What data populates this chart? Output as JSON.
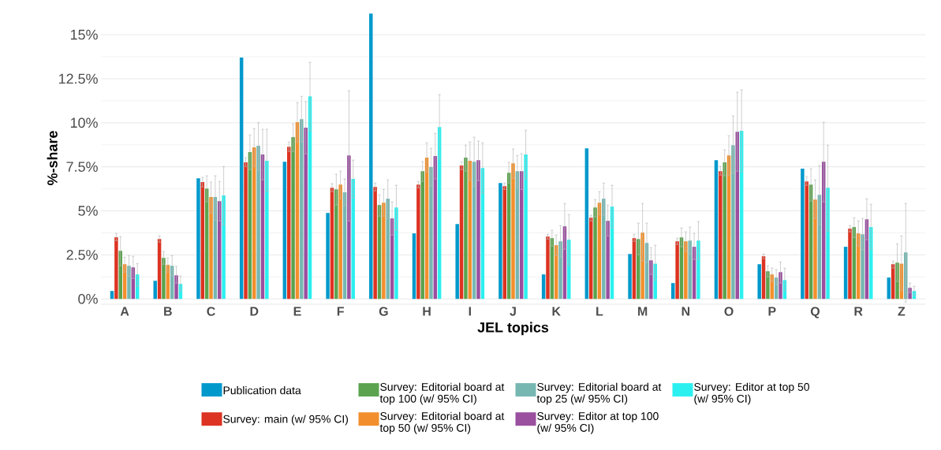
{
  "chart_data": {
    "type": "bar",
    "xlabel": "JEL topics",
    "ylabel": "%-share",
    "categories": [
      "A",
      "B",
      "C",
      "D",
      "E",
      "F",
      "G",
      "H",
      "I",
      "J",
      "K",
      "L",
      "M",
      "N",
      "O",
      "P",
      "Q",
      "R",
      "Z"
    ],
    "ylim": [
      -0.3,
      16.3
    ],
    "yticks": [
      {
        "value": 0,
        "label": "0%"
      },
      {
        "value": 2.5,
        "label": "2.5%"
      },
      {
        "value": 5,
        "label": "5%"
      },
      {
        "value": 7.5,
        "label": "7.5%"
      },
      {
        "value": 10,
        "label": "10%"
      },
      {
        "value": 12.5,
        "label": "12.5%"
      },
      {
        "value": 15,
        "label": "15%"
      }
    ],
    "grid": "y",
    "legend": "bottom",
    "series": [
      {
        "name": "Publication data",
        "color": "#0099cc",
        "values": [
          0.45,
          1.03,
          6.85,
          13.7,
          7.79,
          4.88,
          16.2,
          3.72,
          4.25,
          6.58,
          1.39,
          8.55,
          2.55,
          0.9,
          7.88,
          1.97,
          7.39,
          2.96,
          1.21
        ]
      },
      {
        "name": "Survey: main (w/ 95% CI)",
        "color": "#dd3322",
        "values": [
          3.5,
          3.4,
          6.63,
          7.75,
          8.64,
          6.31,
          6.36,
          6.49,
          7.57,
          6.4,
          3.54,
          4.61,
          3.45,
          3.27,
          7.25,
          2.42,
          6.67,
          3.99,
          1.97
        ],
        "errors": [
          [
            3.31,
            3.72
          ],
          [
            3.22,
            3.58
          ],
          [
            6.36,
            6.9
          ],
          [
            7.52,
            8.02
          ],
          [
            8.37,
            8.91
          ],
          [
            6.09,
            6.54
          ],
          [
            6.13,
            6.58
          ],
          [
            6.31,
            6.67
          ],
          [
            7.34,
            7.79
          ],
          [
            6.22,
            6.58
          ],
          [
            3.4,
            3.67
          ],
          [
            4.43,
            4.75
          ],
          [
            3.27,
            3.67
          ],
          [
            3.09,
            3.45
          ],
          [
            7.03,
            7.52
          ],
          [
            2.28,
            2.55
          ],
          [
            6.45,
            6.94
          ],
          [
            3.81,
            4.16
          ],
          [
            1.75,
            2.15
          ]
        ]
      },
      {
        "name": "Survey: Editorial board at top 100 (w/ 95% CI)",
        "color": "#5ba34e",
        "values": [
          2.73,
          2.33,
          6.27,
          8.33,
          9.18,
          6.22,
          5.33,
          7.25,
          8.02,
          7.16,
          3.45,
          5.19,
          3.4,
          3.49,
          7.75,
          1.57,
          6.49,
          4.08,
          2.06
        ],
        "errors": [
          [
            1.88,
            3.54
          ],
          [
            1.97,
            2.69
          ],
          [
            5.51,
            6.99
          ],
          [
            7.34,
            9.31
          ],
          [
            8.37,
            9.94
          ],
          [
            5.33,
            7.08
          ],
          [
            4.7,
            5.91
          ],
          [
            6.67,
            7.79
          ],
          [
            7.25,
            8.73
          ],
          [
            6.58,
            7.75
          ],
          [
            3.0,
            3.9
          ],
          [
            4.66,
            5.64
          ],
          [
            2.51,
            4.3
          ],
          [
            2.96,
            4.03
          ],
          [
            6.99,
            8.46
          ],
          [
            1.25,
            1.88
          ],
          [
            5.55,
            7.39
          ],
          [
            3.49,
            4.61
          ],
          [
            0.99,
            3.13
          ]
        ]
      },
      {
        "name": "Survey: Editorial board at top 50 (w/ 95% CI)",
        "color": "#f28f2c",
        "values": [
          1.97,
          1.93,
          5.78,
          8.6,
          10.03,
          6.49,
          5.46,
          8.02,
          7.84,
          7.7,
          3.05,
          5.46,
          3.76,
          3.27,
          8.15,
          1.39,
          5.64,
          3.72,
          2.0
        ],
        "errors": [
          [
            1.52,
            2.37
          ],
          [
            1.52,
            2.33
          ],
          [
            4.88,
            6.63
          ],
          [
            7.52,
            9.67
          ],
          [
            8.91,
            11.15
          ],
          [
            5.69,
            7.25
          ],
          [
            4.7,
            6.22
          ],
          [
            7.21,
            8.87
          ],
          [
            6.72,
            8.91
          ],
          [
            6.85,
            8.51
          ],
          [
            2.46,
            3.63
          ],
          [
            4.79,
            6.09
          ],
          [
            2.15,
            5.42
          ],
          [
            2.69,
            3.81
          ],
          [
            6.99,
            9.27
          ],
          [
            0.99,
            1.75
          ],
          [
            4.57,
            6.76
          ],
          [
            3.0,
            4.43
          ],
          [
            0.49,
            3.58
          ]
        ]
      },
      {
        "name": "Survey: Editorial board at top 25 (w/ 95% CI)",
        "color": "#76b7b2",
        "values": [
          1.88,
          1.88,
          5.78,
          8.69,
          10.2,
          6.05,
          5.69,
          7.48,
          7.79,
          7.25,
          3.27,
          5.69,
          3.18,
          3.31,
          8.73,
          1.21,
          5.91,
          3.67,
          2.64
        ],
        "errors": [
          [
            1.3,
            2.46
          ],
          [
            1.3,
            2.46
          ],
          [
            4.48,
            6.99
          ],
          [
            7.3,
            10.0
          ],
          [
            8.91,
            11.5
          ],
          [
            5.28,
            6.81
          ],
          [
            4.57,
            6.76
          ],
          [
            6.4,
            8.55
          ],
          [
            6.4,
            9.18
          ],
          [
            6.31,
            8.15
          ],
          [
            2.37,
            4.16
          ],
          [
            4.75,
            6.58
          ],
          [
            2.06,
            4.3
          ],
          [
            2.55,
            4.08
          ],
          [
            7.12,
            10.39
          ],
          [
            0.81,
            1.66
          ],
          [
            4.21,
            7.57
          ],
          [
            2.78,
            4.57
          ],
          [
            -0.18,
            5.42
          ]
        ]
      },
      {
        "name": "Survey: Editor at top 100 (w/ 95% CI)",
        "color": "#9a4f9f",
        "values": [
          1.79,
          1.34,
          5.55,
          8.2,
          9.72,
          8.15,
          4.57,
          8.11,
          7.88,
          7.25,
          4.12,
          4.43,
          2.19,
          2.96,
          9.49,
          1.52,
          7.79,
          4.52,
          0.63
        ],
        "errors": [
          [
            1.16,
            2.42
          ],
          [
            0.9,
            1.84
          ],
          [
            4.43,
            6.67
          ],
          [
            6.76,
            9.63
          ],
          [
            8.24,
            11.2
          ],
          [
            4.43,
            11.82
          ],
          [
            3.63,
            5.51
          ],
          [
            6.81,
            9.4
          ],
          [
            6.72,
            8.96
          ],
          [
            6.22,
            8.24
          ],
          [
            2.82,
            5.42
          ],
          [
            3.58,
            5.33
          ],
          [
            1.39,
            2.91
          ],
          [
            2.24,
            3.72
          ],
          [
            7.25,
            11.73
          ],
          [
            0.9,
            2.1
          ],
          [
            5.51,
            10.03
          ],
          [
            3.36,
            5.69
          ],
          [
            0.36,
            0.9
          ]
        ]
      },
      {
        "name": "Survey: Editor at top 50 (w/ 95% CI)",
        "color": "#2cf0f0",
        "values": [
          1.39,
          0.85,
          5.87,
          7.84,
          11.5,
          6.81,
          5.19,
          9.76,
          7.43,
          8.2,
          3.36,
          5.24,
          2.0,
          3.31,
          9.54,
          1.07,
          6.31,
          4.08,
          0.45
        ],
        "errors": [
          [
            0.72,
            2.0
          ],
          [
            0.45,
            1.3
          ],
          [
            4.21,
            7.52
          ],
          [
            6.09,
            9.63
          ],
          [
            9.54,
            13.43
          ],
          [
            5.73,
            7.88
          ],
          [
            3.9,
            6.45
          ],
          [
            7.93,
            11.6
          ],
          [
            6.0,
            8.87
          ],
          [
            6.81,
            9.58
          ],
          [
            1.88,
            4.79
          ],
          [
            4.03,
            6.45
          ],
          [
            1.07,
            3.05
          ],
          [
            2.24,
            4.39
          ],
          [
            7.21,
            11.87
          ],
          [
            0.45,
            1.75
          ],
          [
            3.85,
            8.73
          ],
          [
            2.82,
            5.37
          ],
          [
            0.18,
            0.72
          ]
        ]
      }
    ]
  }
}
